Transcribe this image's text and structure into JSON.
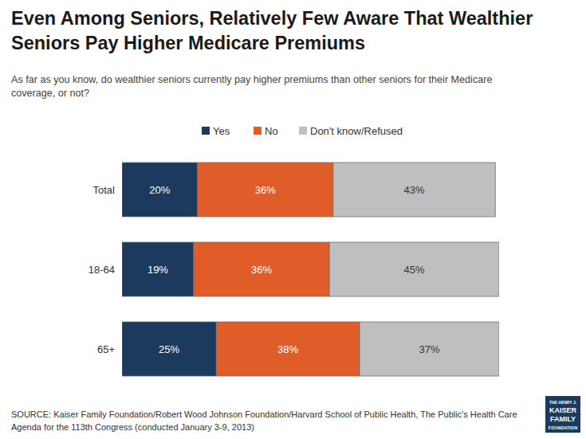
{
  "chart_data": {
    "type": "bar",
    "orientation": "horizontal",
    "stacked": true,
    "data_labels": true,
    "tick_labels": "y",
    "legend": "top",
    "title": [
      "Even Among Seniors, Relatively Few Aware That Wealthier",
      "Seniors Pay Higher Medicare Premiums"
    ],
    "subtitle": [
      "As far as you know, do wealthier seniors currently pay higher premiums than other seniors for their Medicare",
      "coverage, or not?"
    ],
    "source": [
      "SOURCE: Kaiser Family Foundation/Robert Wood Johnson Foundation/Harvard School of Public Health, The Public's Health Care",
      "Agenda for the 113th Congress (conducted January 3-9, 2013)"
    ],
    "logo": [
      "THE HENRY J.",
      "KAISER",
      "FAMILY",
      "FOUNDATION"
    ],
    "categories": [
      "Total",
      "18-64",
      "65+"
    ],
    "xlim": [
      0,
      100
    ],
    "series": [
      {
        "name": "Yes",
        "color": "#1c3a5e",
        "values": [
          20,
          19,
          25
        ],
        "value_labels": [
          "20%",
          "19%",
          "25%"
        ]
      },
      {
        "name": "No",
        "color": "#e05c28",
        "values": [
          36,
          36,
          38
        ],
        "value_labels": [
          "36%",
          "36%",
          "38%"
        ]
      },
      {
        "name": "Don't know/Refused",
        "color": "#bfbfbf",
        "values": [
          43,
          45,
          37
        ],
        "value_labels": [
          "43%",
          "45%",
          "37%"
        ]
      }
    ]
  }
}
